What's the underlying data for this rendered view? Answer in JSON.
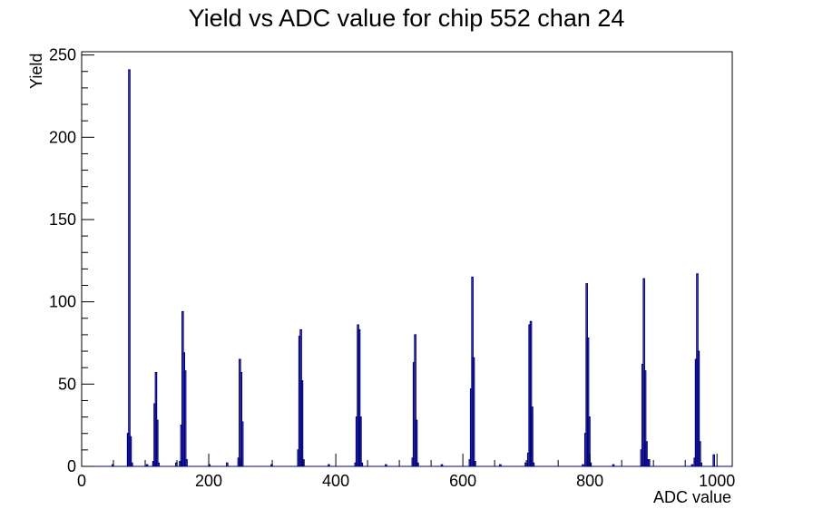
{
  "chart_data": {
    "type": "bar",
    "title": "Yield vs ADC value for chip 552 chan 24",
    "xlabel": "ADC value",
    "ylabel": "Yield",
    "xlim": [
      0,
      1024
    ],
    "ylim": [
      0,
      252
    ],
    "grid": false,
    "x_ticks": [
      0,
      200,
      400,
      600,
      800,
      1000
    ],
    "y_ticks": [
      0,
      50,
      100,
      150,
      200,
      250
    ],
    "bin_width": 2,
    "series": [
      {
        "color": "#000080",
        "points": [
          [
            48,
            1
          ],
          [
            72,
            20
          ],
          [
            74,
            241
          ],
          [
            76,
            18
          ],
          [
            78,
            2
          ],
          [
            102,
            1
          ],
          [
            112,
            3
          ],
          [
            114,
            38
          ],
          [
            116,
            57
          ],
          [
            118,
            28
          ],
          [
            120,
            2
          ],
          [
            148,
            2
          ],
          [
            154,
            3
          ],
          [
            156,
            25
          ],
          [
            158,
            94
          ],
          [
            160,
            69
          ],
          [
            162,
            58
          ],
          [
            164,
            4
          ],
          [
            200,
            1
          ],
          [
            228,
            2
          ],
          [
            246,
            5
          ],
          [
            248,
            65
          ],
          [
            250,
            57
          ],
          [
            252,
            27
          ],
          [
            298,
            1
          ],
          [
            340,
            10
          ],
          [
            342,
            79
          ],
          [
            344,
            83
          ],
          [
            346,
            52
          ],
          [
            348,
            4
          ],
          [
            388,
            1
          ],
          [
            430,
            2
          ],
          [
            432,
            30
          ],
          [
            434,
            86
          ],
          [
            436,
            83
          ],
          [
            438,
            30
          ],
          [
            440,
            2
          ],
          [
            478,
            1
          ],
          [
            520,
            5
          ],
          [
            522,
            63
          ],
          [
            524,
            80
          ],
          [
            526,
            28
          ],
          [
            528,
            2
          ],
          [
            566,
            1
          ],
          [
            610,
            4
          ],
          [
            612,
            47
          ],
          [
            614,
            115
          ],
          [
            616,
            66
          ],
          [
            618,
            3
          ],
          [
            658,
            1
          ],
          [
            698,
            2
          ],
          [
            702,
            8
          ],
          [
            704,
            86
          ],
          [
            706,
            88
          ],
          [
            708,
            36
          ],
          [
            710,
            2
          ],
          [
            788,
            1
          ],
          [
            792,
            20
          ],
          [
            794,
            111
          ],
          [
            796,
            78
          ],
          [
            798,
            30
          ],
          [
            800,
            2
          ],
          [
            836,
            1
          ],
          [
            880,
            10
          ],
          [
            882,
            62
          ],
          [
            884,
            114
          ],
          [
            886,
            58
          ],
          [
            888,
            15
          ],
          [
            890,
            4
          ],
          [
            892,
            4
          ],
          [
            960,
            1
          ],
          [
            964,
            5
          ],
          [
            966,
            65
          ],
          [
            968,
            117
          ],
          [
            970,
            70
          ],
          [
            972,
            15
          ],
          [
            974,
            2
          ],
          [
            994,
            7
          ]
        ]
      }
    ]
  }
}
